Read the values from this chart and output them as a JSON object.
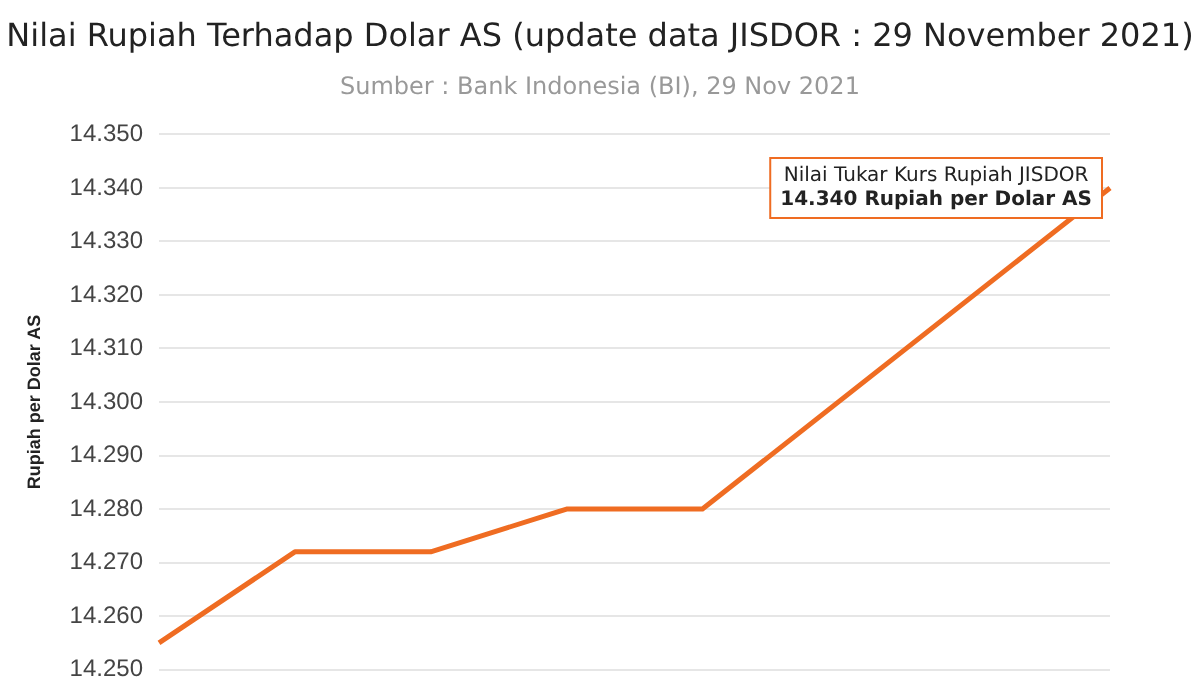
{
  "chart_data": {
    "type": "line",
    "title": "Nilai Rupiah Terhadap Dolar AS (update data JISDOR : 29 November 2021)",
    "subtitle": "Sumber : Bank Indonesia (BI), 29 Nov 2021",
    "ylabel": "Rupiah per Dolar AS",
    "categories": [
      null,
      null,
      null,
      null,
      null,
      null,
      null,
      null
    ],
    "series": [
      {
        "color": "#ef6c22",
        "values": [
          14255,
          14272,
          14272,
          14280,
          14280,
          null,
          null,
          14340
        ]
      }
    ],
    "ylim": [
      14250,
      14350
    ],
    "yticks": [
      {
        "value": 14250,
        "label": "14.250"
      },
      {
        "value": 14260,
        "label": "14.260"
      },
      {
        "value": 14270,
        "label": "14.270"
      },
      {
        "value": 14280,
        "label": "14.280"
      },
      {
        "value": 14290,
        "label": "14.290"
      },
      {
        "value": 14300,
        "label": "14.300"
      },
      {
        "value": 14310,
        "label": "14.310"
      },
      {
        "value": 14320,
        "label": "14.320"
      },
      {
        "value": 14330,
        "label": "14.330"
      },
      {
        "value": 14340,
        "label": "14.340"
      },
      {
        "value": 14350,
        "label": "14.350"
      }
    ],
    "tick_labels": "y",
    "grid": "y",
    "marker": "none",
    "line_style": "solid",
    "legend": false,
    "annotations": [
      "Nilai Tukar Kurs Rupiah JISDOR\n14.340 Rupiah per Dolar AS"
    ]
  }
}
